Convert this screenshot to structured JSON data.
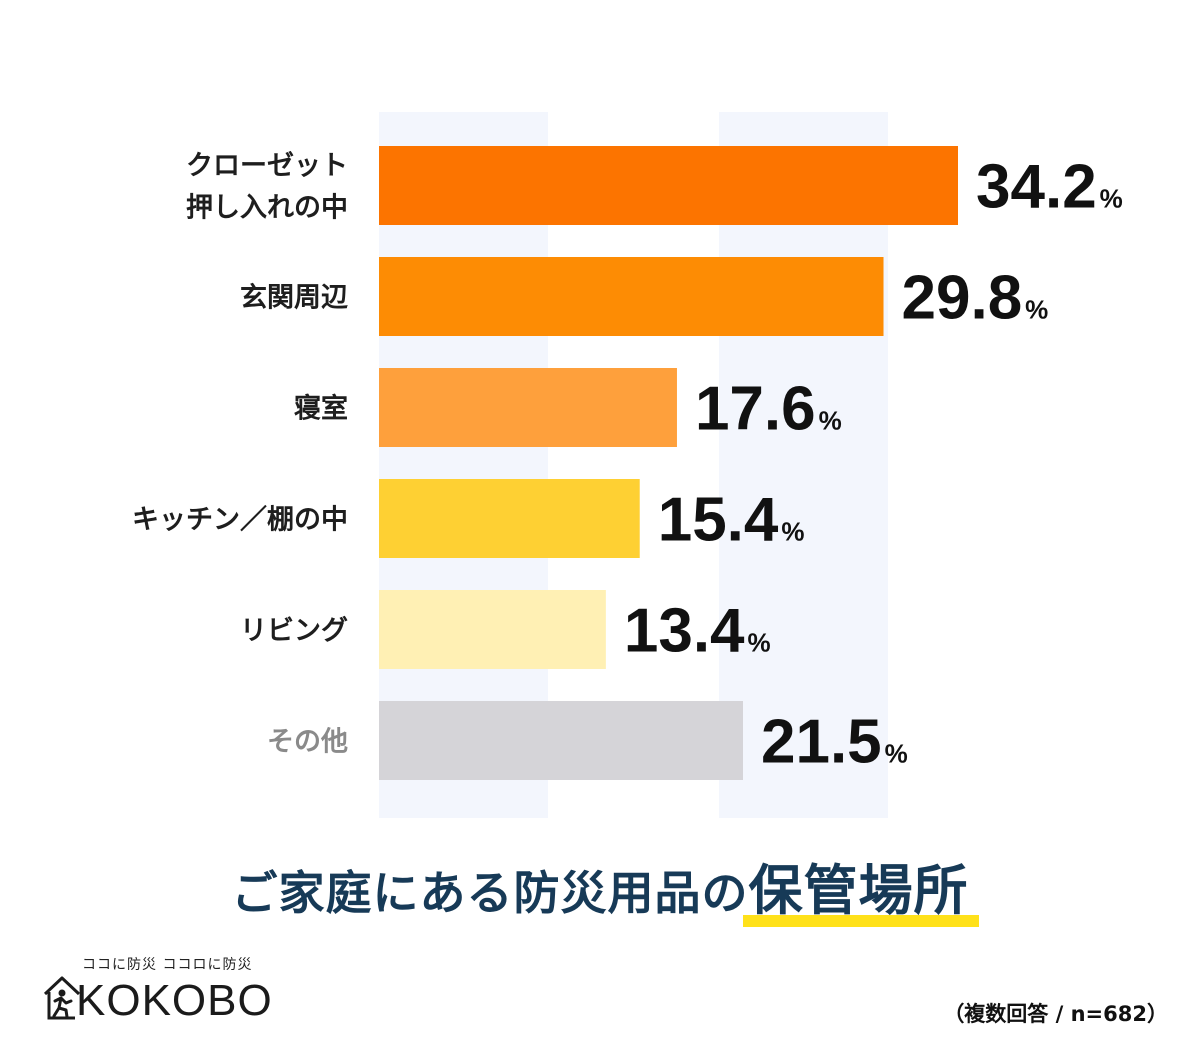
{
  "chart_data": {
    "type": "bar",
    "orientation": "horizontal",
    "title_parts": [
      "ご家庭にある防災用品の",
      "保管場所"
    ],
    "categories": [
      [
        "クローゼット",
        "押し入れの中"
      ],
      [
        "玄関周辺"
      ],
      [
        "寝室"
      ],
      [
        "キッチン／棚の中"
      ],
      [
        "リビング"
      ],
      [
        "その他"
      ]
    ],
    "values": [
      34.2,
      29.8,
      17.6,
      15.4,
      13.4,
      21.5
    ],
    "value_labels": [
      "34.2",
      "29.8",
      "17.6",
      "15.4",
      "13.4",
      "21.5"
    ],
    "unit": "%",
    "bar_colors": [
      "#fc7400",
      "#fd8c04",
      "#fea03c",
      "#fed033",
      "#fff0b4",
      "#d5d4d8"
    ],
    "label_colors": [
      "#1e1e1e",
      "#1e1e1e",
      "#1e1e1e",
      "#1e1e1e",
      "#1e1e1e",
      "#8a8a8a"
    ],
    "xlim": [
      0,
      40
    ],
    "background_band_color": "#f3f6fd"
  },
  "footer": {
    "brand_tagline": "ココに防災 ココロに防災",
    "brand_name": "KOKOBO",
    "note": "（複数回答 / n=682）"
  },
  "colors": {
    "title_text": "#173a57",
    "highlight": "#ffe11a"
  }
}
